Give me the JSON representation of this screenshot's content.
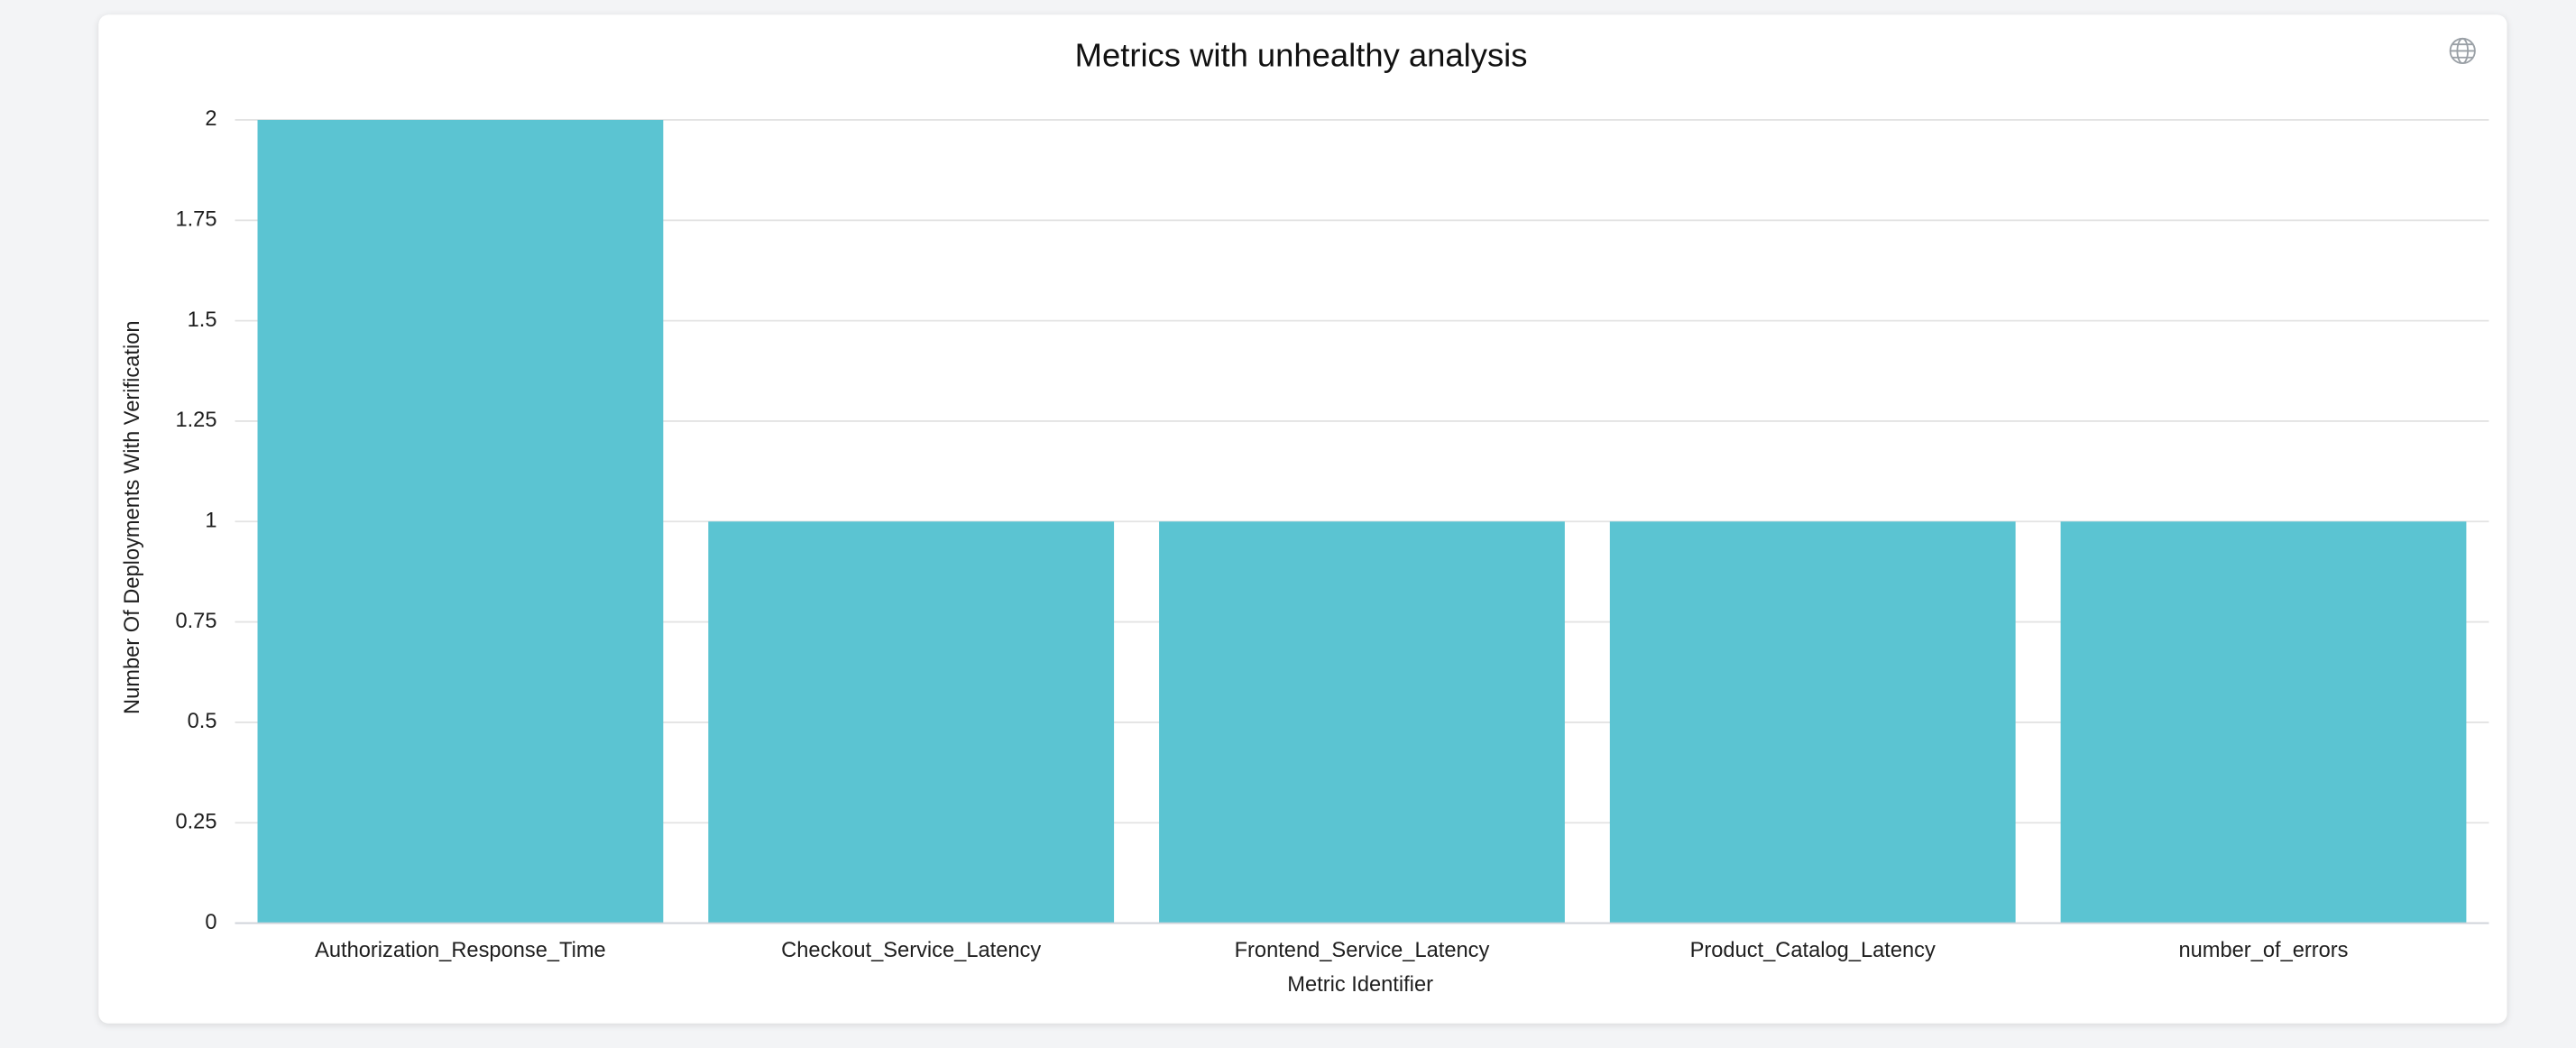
{
  "chart_data": {
    "type": "bar",
    "title": "Metrics with unhealthy analysis",
    "x_label": "Metric Identifier",
    "y_label": "Number Of Deployments With Verification",
    "categories": [
      "Authorization_Response_Time",
      "Checkout_Service_Latency",
      "Frontend_Service_Latency",
      "Product_Catalog_Latency",
      "number_of_errors"
    ],
    "values": [
      2,
      1,
      1,
      1,
      1
    ],
    "color": "#5bc4d2",
    "ylim": [
      0,
      2
    ],
    "yticks": [
      0,
      0.25,
      0.5,
      0.75,
      1,
      1.25,
      1.5,
      1.75,
      2
    ],
    "grid": true
  }
}
